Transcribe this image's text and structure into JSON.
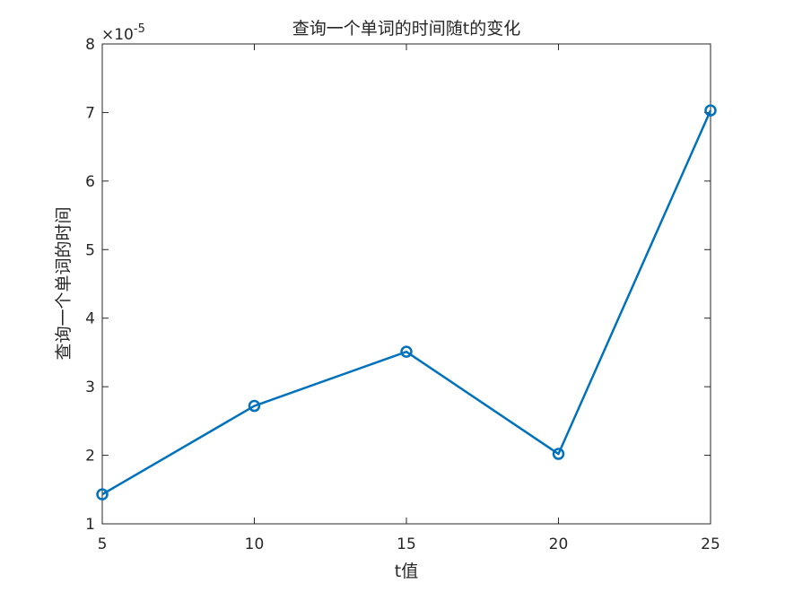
{
  "chart_data": {
    "type": "line",
    "title": "查询一个单词的时间随t的变化",
    "xlabel": "t值",
    "ylabel": "查询一个单词的时间",
    "y_exponent_label": {
      "base": "×10",
      "exp": "-5"
    },
    "xlim": [
      5,
      25
    ],
    "ylim": [
      1,
      8
    ],
    "xticks": [
      5,
      10,
      15,
      20,
      25
    ],
    "yticks": [
      1,
      2,
      3,
      4,
      5,
      6,
      7,
      8
    ],
    "x": [
      5,
      10,
      15,
      20,
      25
    ],
    "series": [
      {
        "values": [
          1.43,
          2.72,
          3.51,
          2.02,
          7.03
        ],
        "marker": "circle",
        "color": "#0072BD"
      }
    ],
    "grid": false,
    "box": true
  }
}
